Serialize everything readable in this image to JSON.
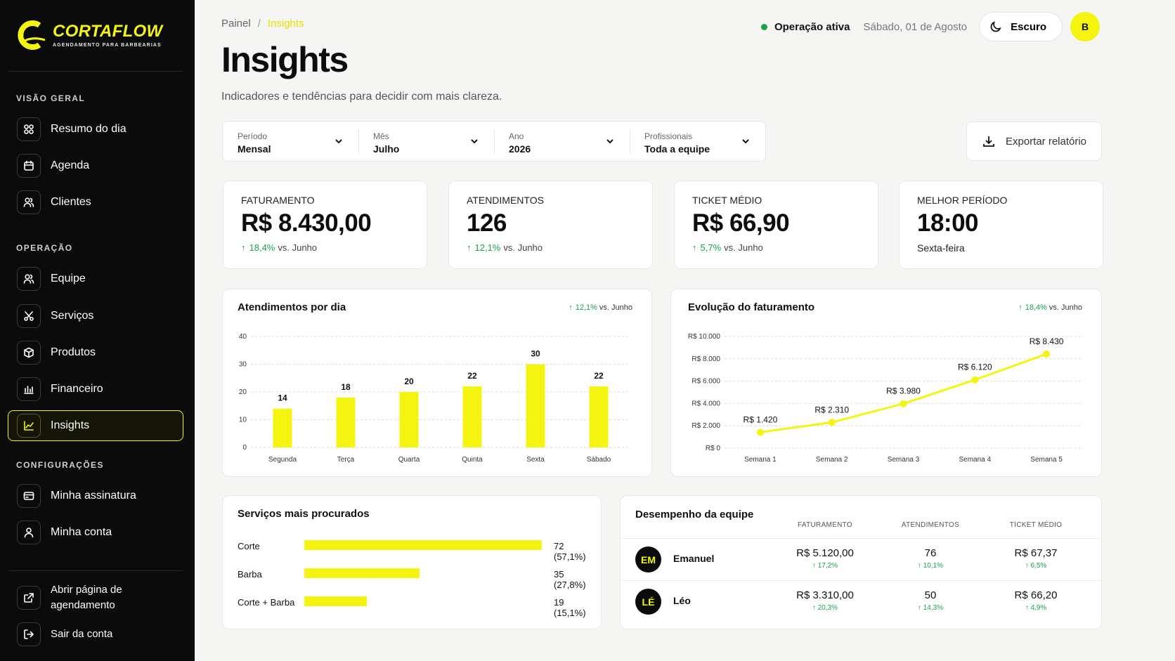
{
  "brand": {
    "name": "CORTAFLOW",
    "tagline": "AGENDAMENTO PARA BARBEARIAS"
  },
  "sidebar": {
    "sections": {
      "overview": "VISÃO GERAL",
      "operation": "OPERAÇÃO",
      "settings": "CONFIGURAÇÕES"
    },
    "items": [
      {
        "label": "Resumo do dia",
        "icon": "grid-icon"
      },
      {
        "label": "Agenda",
        "icon": "calendar-icon"
      },
      {
        "label": "Clientes",
        "icon": "users-icon"
      },
      {
        "label": "Equipe",
        "icon": "team-icon"
      },
      {
        "label": "Serviços",
        "icon": "scissors-icon"
      },
      {
        "label": "Produtos",
        "icon": "box-icon"
      },
      {
        "label": "Financeiro",
        "icon": "finance-icon"
      },
      {
        "label": "Insights",
        "icon": "chart-line-icon",
        "active": true
      },
      {
        "label": "Minha assinatura",
        "icon": "card-icon"
      },
      {
        "label": "Minha conta",
        "icon": "user-icon"
      }
    ],
    "footer": [
      {
        "label_line1": "Abrir página de",
        "label_line2": "agendamento",
        "icon": "external-link-icon"
      },
      {
        "label": "Sair da conta",
        "icon": "logout-icon"
      }
    ]
  },
  "breadcrumb": {
    "root": "Painel",
    "separator": "/",
    "current": "Insights"
  },
  "page": {
    "title": "Insights",
    "subtitle": "Indicadores e tendências para decidir com mais clareza."
  },
  "topbar": {
    "status": "Operação ativa",
    "date": "Sábado, 01 de Agosto",
    "theme_label": "Escuro",
    "avatar_initial": "B"
  },
  "filters": [
    {
      "label": "Período",
      "value": "Mensal"
    },
    {
      "label": "Mês",
      "value": "Julho"
    },
    {
      "label": "Ano",
      "value": "2026"
    },
    {
      "label": "Profissionais",
      "value": "Toda a equipe"
    }
  ],
  "export_label": "Exportar relatório",
  "kpis": [
    {
      "label": "FATURAMENTO",
      "value": "R$ 8.430,00",
      "delta": "18,4%",
      "vs": "vs. Junho"
    },
    {
      "label": "ATENDIMENTOS",
      "value": "126",
      "delta": "12,1%",
      "vs": "vs. Junho"
    },
    {
      "label": "TICKET MÉDIO",
      "value": "R$ 66,90",
      "delta": "5,7%",
      "vs": "vs. Junho"
    },
    {
      "label": "MELHOR PERÍODO",
      "value": "18:00",
      "sub": "Sexta-feira"
    }
  ],
  "chart_data": [
    {
      "type": "bar",
      "title": "Atendimentos por dia",
      "delta": "12,1%",
      "vs": "vs. Junho",
      "categories": [
        "Segunda",
        "Terça",
        "Quarta",
        "Quinta",
        "Sexta",
        "Sábado"
      ],
      "values": [
        14,
        18,
        20,
        22,
        30,
        22
      ],
      "yticks": [
        0,
        10,
        20,
        30,
        40
      ],
      "ylim": [
        0,
        40
      ],
      "grid": true,
      "color": "#f4f410"
    },
    {
      "type": "line",
      "title": "Evolução do faturamento",
      "delta": "18,4%",
      "vs": "vs. Junho",
      "categories": [
        "Semana 1",
        "Semana 2",
        "Semana 3",
        "Semana 4",
        "Semana 5"
      ],
      "values": [
        1420,
        2310,
        3980,
        6120,
        8430
      ],
      "value_labels": [
        "R$ 1.420",
        "R$ 2.310",
        "R$ 3.980",
        "R$ 6.120",
        "R$ 8.430"
      ],
      "yticks": [
        0,
        2000,
        4000,
        6000,
        8000,
        10000
      ],
      "ytick_labels": [
        "R$ 0",
        "R$ 2.000",
        "R$ 4.000",
        "R$ 6.000",
        "R$ 8.000",
        "R$ 10.000"
      ],
      "ylim": [
        0,
        10000
      ],
      "grid": true,
      "color": "#f4f410"
    }
  ],
  "services": {
    "title": "Serviços mais procurados",
    "items": [
      {
        "name": "Corte",
        "count": 72,
        "label": "72 (57,1%)"
      },
      {
        "name": "Barba",
        "count": 35,
        "label": "35 (27,8%)"
      },
      {
        "name": "Corte + Barba",
        "count": 19,
        "label": "19 (15,1%)"
      }
    ],
    "max": 72
  },
  "team": {
    "title": "Desempenho da equipe",
    "columns": [
      "FATURAMENTO",
      "ATENDIMENTOS",
      "TICKET MÉDIO"
    ],
    "rows": [
      {
        "initials": "EM",
        "name": "Emanuel",
        "revenue": "R$ 5.120,00",
        "revenue_d": "↑ 17,2%",
        "count": "76",
        "count_d": "↑ 10,1%",
        "ticket": "R$ 67,37",
        "ticket_d": "↑ 6,5%"
      },
      {
        "initials": "LÉ",
        "name": "Léo",
        "revenue": "R$ 3.310,00",
        "revenue_d": "↑ 20,3%",
        "count": "50",
        "count_d": "↑ 14,3%",
        "ticket": "R$ 66,20",
        "ticket_d": "↑ 4,9%"
      }
    ]
  },
  "colors": {
    "accent": "#f4f410",
    "positive": "#16a34a",
    "sidebar_bg": "#0b0b0b"
  }
}
